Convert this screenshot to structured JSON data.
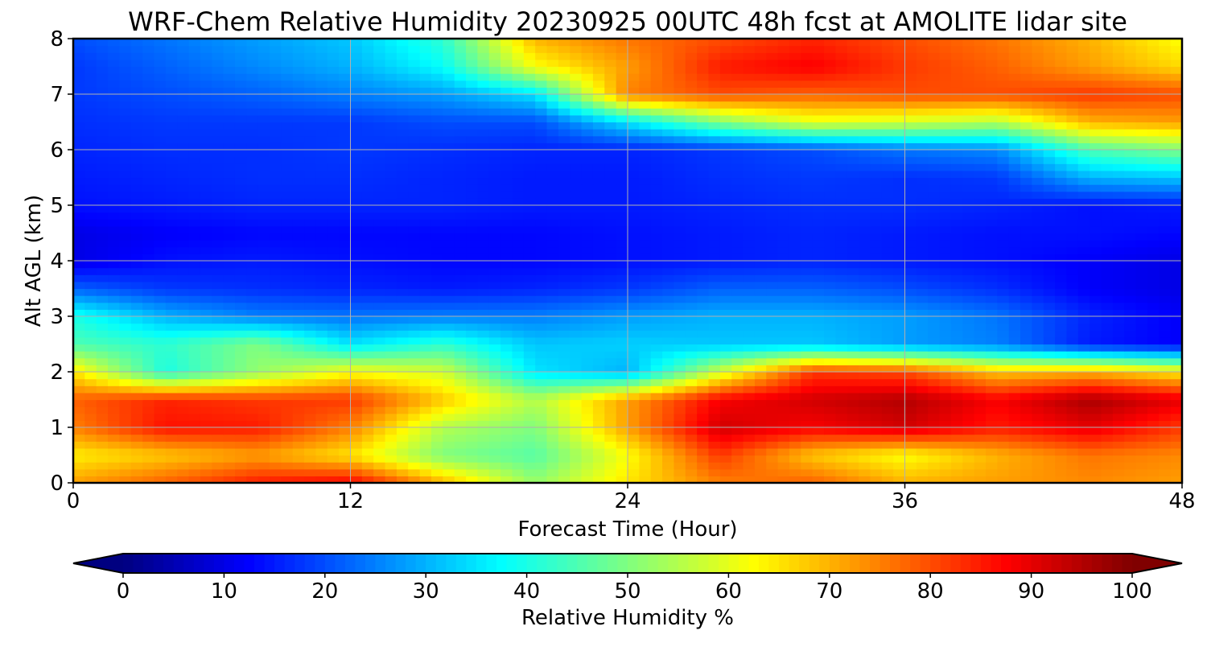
{
  "chart_data": {
    "type": "heatmap",
    "title": "WRF-Chem Relative Humidity 20230925 00UTC 48h fcst at AMOLITE lidar site",
    "xlabel": "Forecast Time (Hour)",
    "ylabel": "Alt AGL (km)",
    "xlim": [
      0,
      48
    ],
    "ylim": [
      0,
      8
    ],
    "xticks": [
      0,
      12,
      24,
      36,
      48
    ],
    "yticks": [
      0,
      1,
      2,
      3,
      4,
      5,
      6,
      7,
      8
    ],
    "grid": true,
    "colorbar": {
      "label": "Relative Humidity %",
      "orientation": "horizontal",
      "position": "bottom",
      "colormap": "jet",
      "range": [
        0,
        100
      ],
      "ticks": [
        0,
        10,
        20,
        30,
        40,
        50,
        60,
        70,
        80,
        90,
        100
      ],
      "extend": "both"
    },
    "x": [
      0,
      4,
      8,
      12,
      16,
      20,
      24,
      28,
      32,
      36,
      40,
      44,
      48
    ],
    "y": [
      0,
      0.5,
      1,
      1.5,
      2,
      2.5,
      3,
      3.5,
      4,
      4.5,
      5,
      5.5,
      6,
      6.5,
      7,
      7.5,
      8
    ],
    "z": [
      [
        72,
        78,
        85,
        88,
        70,
        52,
        65,
        75,
        78,
        70,
        72,
        74,
        72
      ],
      [
        64,
        68,
        72,
        65,
        50,
        46,
        62,
        82,
        68,
        62,
        70,
        76,
        74
      ],
      [
        75,
        86,
        85,
        75,
        55,
        50,
        72,
        92,
        88,
        92,
        85,
        90,
        82
      ],
      [
        78,
        84,
        82,
        82,
        68,
        55,
        72,
        88,
        92,
        95,
        88,
        96,
        90
      ],
      [
        65,
        40,
        52,
        62,
        58,
        35,
        30,
        58,
        82,
        80,
        68,
        70,
        64
      ],
      [
        45,
        42,
        50,
        35,
        42,
        32,
        33,
        32,
        32,
        28,
        25,
        15,
        12
      ],
      [
        40,
        30,
        25,
        24,
        25,
        25,
        28,
        30,
        30,
        28,
        24,
        16,
        12
      ],
      [
        22,
        18,
        17,
        16,
        15,
        16,
        18,
        22,
        22,
        20,
        17,
        12,
        10
      ],
      [
        10,
        14,
        15,
        14,
        13,
        13,
        14,
        15,
        16,
        15,
        14,
        12,
        10
      ],
      [
        10,
        12,
        13,
        13,
        13,
        13,
        14,
        15,
        16,
        15,
        14,
        14,
        13
      ],
      [
        14,
        15,
        16,
        16,
        16,
        15,
        15,
        16,
        17,
        17,
        16,
        14,
        15
      ],
      [
        15,
        16,
        17,
        17,
        16,
        15,
        15,
        17,
        18,
        17,
        18,
        30,
        32
      ],
      [
        16,
        17,
        17,
        18,
        17,
        16,
        16,
        18,
        20,
        24,
        26,
        45,
        50
      ],
      [
        17,
        18,
        18,
        18,
        20,
        20,
        35,
        50,
        60,
        58,
        55,
        70,
        72
      ],
      [
        18,
        20,
        22,
        25,
        28,
        35,
        75,
        80,
        78,
        80,
        80,
        82,
        80
      ],
      [
        18,
        22,
        26,
        30,
        38,
        62,
        72,
        85,
        88,
        82,
        78,
        72,
        66
      ],
      [
        20,
        24,
        28,
        32,
        42,
        70,
        76,
        80,
        84,
        80,
        76,
        70,
        62
      ]
    ]
  }
}
